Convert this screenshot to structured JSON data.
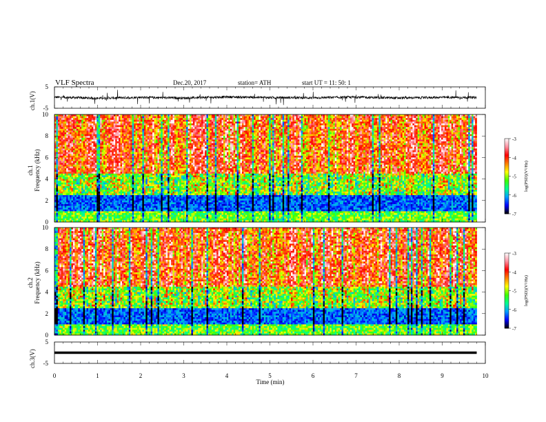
{
  "header": {
    "title": "VLF  Spectra",
    "date": "Dec.20, 2017",
    "station": "station= ATH",
    "start": "start  UT  =    11: 50: 1"
  },
  "chart_data": [
    {
      "type": "line",
      "panel": "waveform-ch1",
      "ylabel": "ch.1(V)",
      "ylim": [
        -5,
        5
      ],
      "yticks": [
        "5",
        "-5"
      ],
      "x": [
        0,
        1,
        2,
        3,
        4,
        5,
        6,
        7,
        8,
        9,
        9.8
      ],
      "values": [
        0.2,
        -0.3,
        0.1,
        -0.2,
        0.3,
        0.0,
        -0.1,
        0.2,
        -0.2,
        0.1,
        0.0
      ],
      "color": "#000000"
    },
    {
      "type": "heatmap",
      "panel": "spectrogram-ch1",
      "ylabel": "ch.1\nFrequency  (kHz)",
      "ylim": [
        0,
        10
      ],
      "yticks": [
        "10",
        "8",
        "6",
        "4",
        "2",
        "0"
      ],
      "colorbar": {
        "label": "log(PSD)(V²/Hz)",
        "ticks": [
          "-3",
          "-4",
          "-5",
          "-6",
          "-7"
        ],
        "range": [
          -7,
          -3
        ]
      }
    },
    {
      "type": "heatmap",
      "panel": "spectrogram-ch2",
      "ylabel": "ch.2\nFrequency  (kHz)",
      "ylim": [
        0,
        10
      ],
      "yticks": [
        "10",
        "8",
        "6",
        "4",
        "2",
        "0"
      ],
      "colorbar": {
        "label": "log(PSD)(V²/Hz)",
        "ticks": [
          "-3",
          "-4",
          "-5",
          "-6",
          "-7"
        ],
        "range": [
          -7,
          -3
        ]
      }
    },
    {
      "type": "line",
      "panel": "waveform-ch3",
      "ylabel": "ch.3(V)",
      "ylim": [
        -5,
        5
      ],
      "yticks": [
        "5",
        "-5"
      ],
      "x": [
        0,
        9.8
      ],
      "values": [
        0,
        0
      ],
      "color": "#000000"
    }
  ],
  "xaxis": {
    "label": "Time  (min)",
    "range": [
      0,
      10
    ],
    "ticks": [
      "0",
      "1",
      "2",
      "3",
      "4",
      "5",
      "6",
      "7",
      "8",
      "9",
      "10"
    ]
  },
  "colormap": [
    "#000000",
    "#0000ff",
    "#00a0ff",
    "#00ff90",
    "#40ff00",
    "#ffff00",
    "#ff8000",
    "#ff0000",
    "#ff90a0",
    "#ffffff"
  ]
}
